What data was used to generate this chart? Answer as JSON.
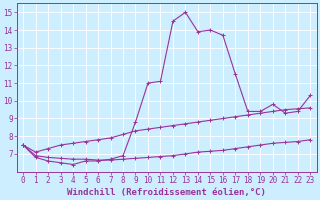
{
  "xlabel": "Windchill (Refroidissement éolien,°C)",
  "bg_color": "#cceeff",
  "line_color": "#993399",
  "grid_color": "#ffffff",
  "xlim": [
    -0.5,
    23.5
  ],
  "ylim": [
    6.0,
    15.5
  ],
  "xticks": [
    0,
    1,
    2,
    3,
    4,
    5,
    6,
    7,
    8,
    9,
    10,
    11,
    12,
    13,
    14,
    15,
    16,
    17,
    18,
    19,
    20,
    21,
    22,
    23
  ],
  "yticks": [
    7,
    8,
    9,
    10,
    11,
    12,
    13,
    14,
    15
  ],
  "series_main": [
    7.5,
    6.8,
    6.6,
    6.5,
    6.4,
    6.6,
    6.6,
    6.7,
    6.9,
    8.8,
    11.0,
    11.1,
    14.5,
    15.0,
    13.9,
    14.0,
    13.7,
    11.5,
    9.4,
    9.4,
    9.8,
    9.3,
    9.4,
    10.3
  ],
  "series_low": [
    7.5,
    6.9,
    6.8,
    6.75,
    6.7,
    6.7,
    6.65,
    6.65,
    6.7,
    6.75,
    6.8,
    6.85,
    6.9,
    7.0,
    7.1,
    7.15,
    7.2,
    7.3,
    7.4,
    7.5,
    7.6,
    7.65,
    7.7,
    7.8
  ],
  "series_high": [
    7.5,
    7.1,
    7.3,
    7.5,
    7.6,
    7.7,
    7.8,
    7.9,
    8.1,
    8.3,
    8.4,
    8.5,
    8.6,
    8.7,
    8.8,
    8.9,
    9.0,
    9.1,
    9.2,
    9.3,
    9.4,
    9.5,
    9.55,
    9.6
  ],
  "marker": "+",
  "markersize": 3,
  "linewidth": 0.8,
  "tick_fontsize": 5.5,
  "label_fontsize": 6.5
}
